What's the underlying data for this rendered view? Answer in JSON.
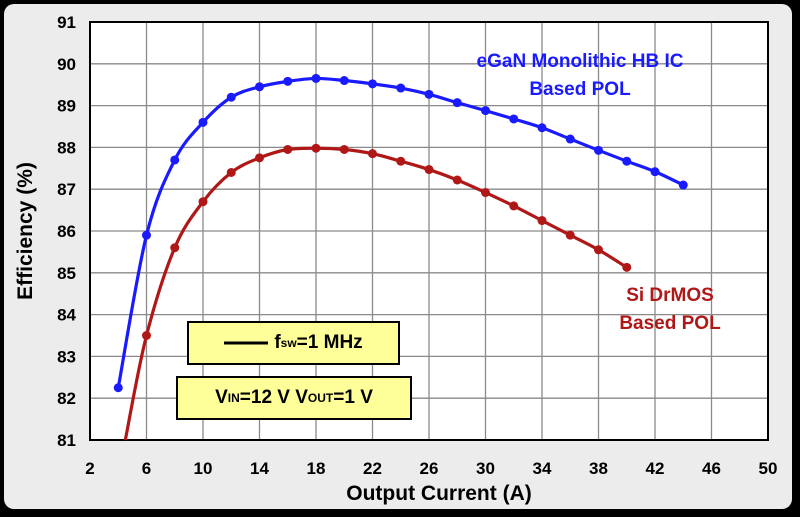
{
  "chart_data": {
    "type": "line",
    "xlabel": "Output Current (A)",
    "ylabel": "Efficiency (%)",
    "xlim": [
      2,
      50
    ],
    "ylim": [
      81,
      91
    ],
    "xticks": [
      2,
      6,
      10,
      14,
      18,
      22,
      26,
      30,
      34,
      38,
      42,
      46,
      50
    ],
    "yticks": [
      81,
      82,
      83,
      84,
      85,
      86,
      87,
      88,
      89,
      90,
      91
    ],
    "grid": true,
    "series": [
      {
        "name": "eGaN Monolithic HB IC Based POL",
        "name_lines": [
          "eGaN Monolithic HB IC",
          "Based POL"
        ],
        "color": "#1a1aff",
        "x": [
          4,
          6,
          8,
          10,
          12,
          14,
          16,
          18,
          20,
          22,
          24,
          26,
          28,
          30,
          32,
          34,
          36,
          38,
          40,
          42,
          44
        ],
        "y": [
          82.25,
          85.9,
          87.7,
          88.6,
          89.2,
          89.45,
          89.58,
          89.65,
          89.6,
          89.52,
          89.42,
          89.27,
          89.07,
          88.88,
          88.68,
          88.47,
          88.2,
          87.93,
          87.67,
          87.42,
          87.1
        ]
      },
      {
        "name": "Si DrMOS Based POL",
        "name_lines": [
          "Si DrMOS",
          "Based POL"
        ],
        "color": "#b01818",
        "x": [
          4.5,
          6,
          8,
          10,
          12,
          14,
          16,
          18,
          20,
          22,
          24,
          26,
          28,
          30,
          32,
          34,
          36,
          38,
          40
        ],
        "y": [
          81,
          83.5,
          85.6,
          86.7,
          87.4,
          87.75,
          87.95,
          87.98,
          87.95,
          87.85,
          87.67,
          87.47,
          87.22,
          86.92,
          86.6,
          86.25,
          85.9,
          85.55,
          85.13
        ]
      }
    ]
  },
  "annotations": {
    "fsw": {
      "prefix": "f",
      "sub": "sw",
      "suffix": "=1 MHz"
    },
    "vin": {
      "prefix": "V",
      "sub": "IN",
      "middle": "=12 V V",
      "sub2": "OUT",
      "suffix": "=1 V"
    }
  }
}
